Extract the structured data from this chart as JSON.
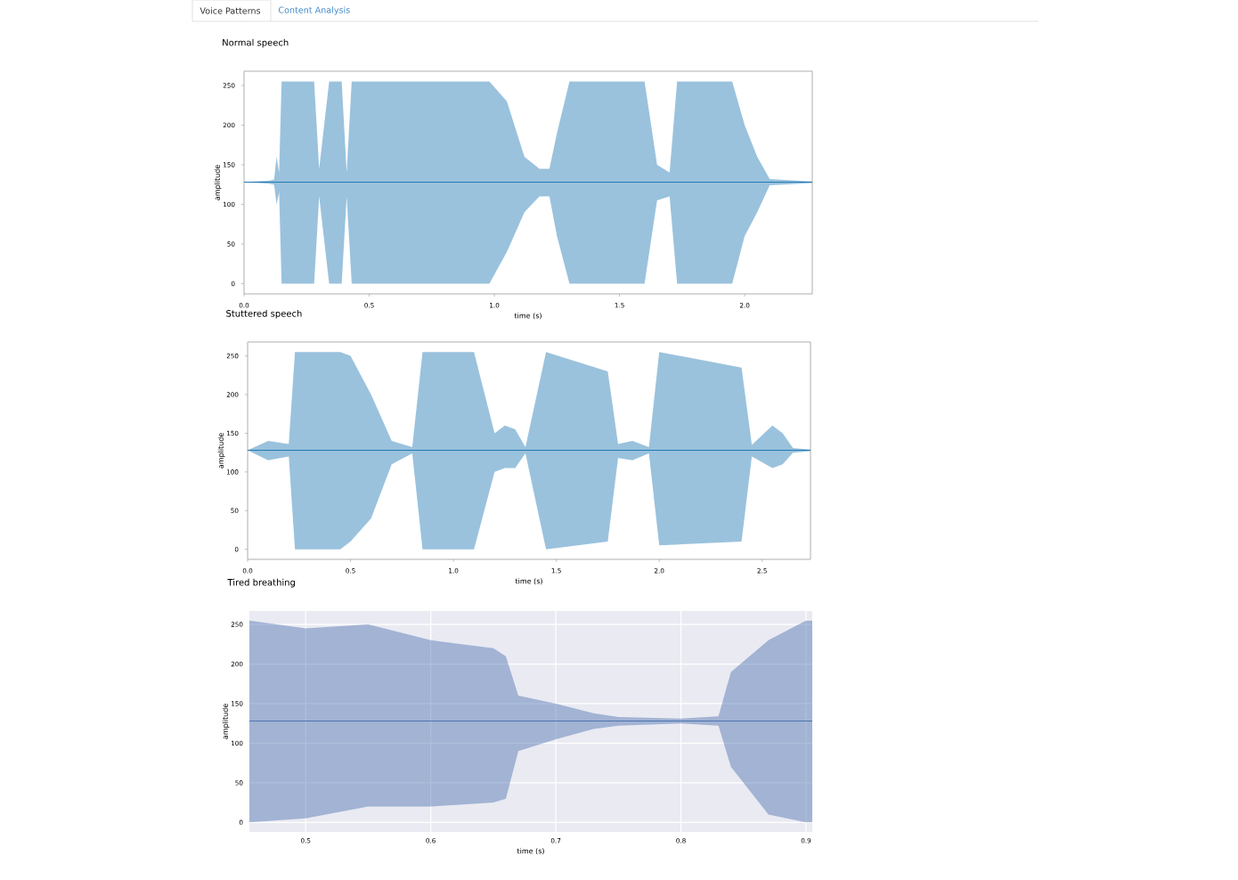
{
  "chart_data": [
    {
      "type": "other",
      "annotations": [
        "Voice Patterns",
        "Content Analysis"
      ]
    },
    {
      "type": "line",
      "title": "Normal speech",
      "xlabel": "time (s)",
      "ylabel": "amplitude",
      "xlim": [
        0,
        2.27
      ],
      "ylim": [
        -13,
        268
      ],
      "xticks": [
        {
          "value": 0,
          "label": "0.0"
        },
        0.5,
        {
          "value": 1,
          "label": "1.0"
        },
        1.5,
        {
          "value": 2,
          "label": "2.0"
        }
      ],
      "yticks": [
        0,
        50,
        100,
        150,
        200,
        250
      ],
      "series": [
        {
          "color": "#1f77b4",
          "x": [
            0,
            0.1,
            0.12,
            0.13,
            0.14,
            0.15,
            0.28,
            0.3,
            0.34,
            0.39,
            0.41,
            0.43,
            0.7,
            0.85,
            0.98,
            1.05,
            1.12,
            1.18,
            1.22,
            1.25,
            1.3,
            1.45,
            1.6,
            1.65,
            1.7,
            1.73,
            1.95,
            2.0,
            2.05,
            2.1,
            2.27
          ],
          "values": [
            128,
            128,
            128,
            128,
            128,
            128,
            128,
            128,
            128,
            128,
            128,
            128,
            128,
            128,
            128,
            128,
            128,
            128,
            128,
            128,
            128,
            128,
            128,
            128,
            128,
            128,
            128,
            128,
            128,
            128,
            128
          ],
          "lower": [
            128,
            126,
            125,
            100,
            115,
            0,
            0,
            110,
            0,
            0,
            110,
            0,
            0,
            0,
            0,
            40,
            90,
            110,
            110,
            60,
            0,
            0,
            0,
            105,
            110,
            0,
            0,
            60,
            90,
            124,
            127
          ],
          "upper": [
            128,
            130,
            131,
            160,
            140,
            255,
            255,
            145,
            255,
            255,
            140,
            255,
            255,
            255,
            255,
            230,
            160,
            145,
            145,
            190,
            255,
            255,
            255,
            150,
            140,
            255,
            255,
            200,
            160,
            132,
            129
          ]
        }
      ]
    },
    {
      "type": "line",
      "title": "Stuttered speech",
      "xlabel": "time (s)",
      "ylabel": "amplitude",
      "xlim": [
        0,
        2.735
      ],
      "ylim": [
        -13,
        268
      ],
      "xticks": [
        {
          "value": 0,
          "label": "0.0"
        },
        0.5,
        {
          "value": 1,
          "label": "1.0"
        },
        1.5,
        {
          "value": 2,
          "label": "2.0"
        },
        2.5
      ],
      "yticks": [
        0,
        50,
        100,
        150,
        200,
        250
      ],
      "series": [
        {
          "color": "#1f77b4",
          "x": [
            0,
            0.1,
            0.2,
            0.23,
            0.45,
            0.5,
            0.6,
            0.7,
            0.8,
            0.85,
            1.1,
            1.2,
            1.25,
            1.3,
            1.35,
            1.45,
            1.75,
            1.8,
            1.87,
            1.95,
            2.0,
            2.4,
            2.45,
            2.55,
            2.6,
            2.65,
            2.735
          ],
          "values": [
            128,
            128,
            128,
            128,
            128,
            128,
            128,
            128,
            128,
            128,
            128,
            128,
            128,
            128,
            128,
            128,
            128,
            128,
            128,
            128,
            128,
            128,
            128,
            128,
            128,
            128,
            128
          ],
          "lower": [
            128,
            115,
            120,
            0,
            0,
            10,
            40,
            110,
            124,
            0,
            0,
            100,
            105,
            105,
            124,
            0,
            10,
            118,
            115,
            124,
            5,
            10,
            120,
            105,
            110,
            125,
            127
          ],
          "upper": [
            128,
            140,
            136,
            255,
            255,
            250,
            200,
            140,
            132,
            255,
            255,
            150,
            160,
            155,
            132,
            255,
            230,
            136,
            140,
            132,
            255,
            235,
            135,
            160,
            150,
            131,
            129
          ]
        }
      ]
    },
    {
      "type": "line",
      "title": "Tired breathing",
      "xlabel": "time (s)",
      "ylabel": "amplitude",
      "xlim": [
        0.455,
        0.905
      ],
      "ylim": [
        -12,
        267
      ],
      "grid": true,
      "xticks": [
        0.5,
        0.6,
        0.7,
        0.8,
        0.9
      ],
      "yticks": [
        0,
        50,
        100,
        150,
        200,
        250
      ],
      "series": [
        {
          "color": "#4c72b0",
          "x": [
            0.455,
            0.5,
            0.55,
            0.6,
            0.65,
            0.66,
            0.67,
            0.7,
            0.73,
            0.75,
            0.8,
            0.83,
            0.84,
            0.87,
            0.9,
            0.905
          ],
          "values": [
            128,
            128,
            128,
            128,
            128,
            128,
            128,
            128,
            128,
            128,
            128,
            128,
            128,
            128,
            128,
            128
          ],
          "lower": [
            0,
            5,
            20,
            20,
            25,
            30,
            90,
            105,
            118,
            122,
            125,
            122,
            70,
            10,
            0,
            0
          ],
          "upper": [
            255,
            245,
            250,
            230,
            220,
            210,
            160,
            150,
            138,
            133,
            131,
            134,
            190,
            230,
            255,
            255
          ]
        }
      ]
    }
  ]
}
